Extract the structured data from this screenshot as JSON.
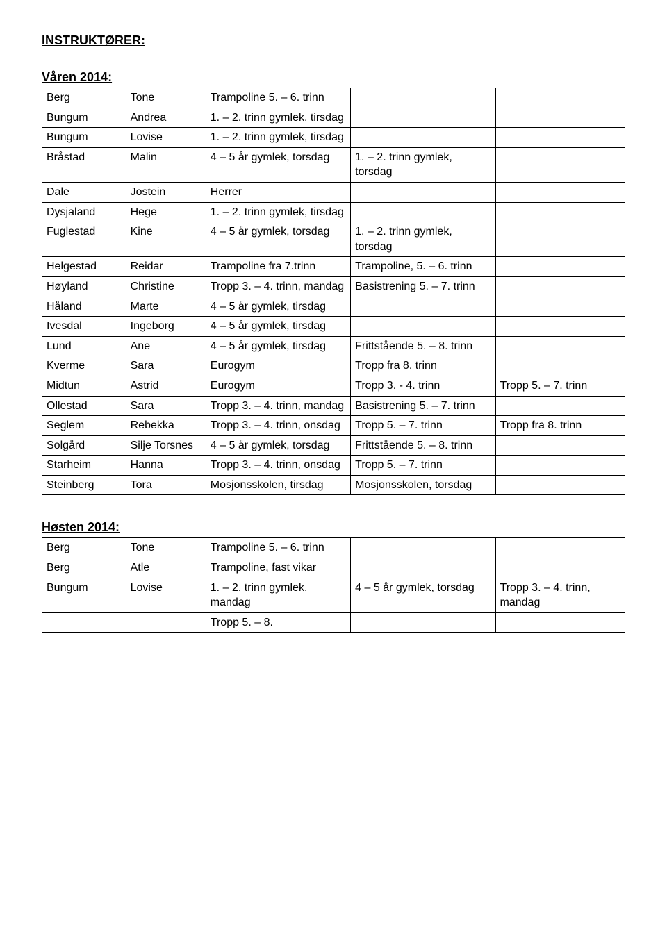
{
  "heading": "INSTRUKTØRER:",
  "spring": {
    "title": "Våren 2014:",
    "rows": [
      [
        "Berg",
        "Tone",
        "Trampoline 5. – 6. trinn",
        "",
        ""
      ],
      [
        "Bungum",
        "Andrea",
        "1. – 2. trinn gymlek, tirsdag",
        "",
        ""
      ],
      [
        "Bungum",
        "Lovise",
        "1. – 2. trinn gymlek, tirsdag",
        "",
        ""
      ],
      [
        "Bråstad",
        "Malin",
        "4 – 5 år gymlek, torsdag",
        "1. – 2. trinn gymlek, torsdag",
        ""
      ],
      [
        "Dale",
        "Jostein",
        "Herrer",
        "",
        ""
      ],
      [
        "Dysjaland",
        "Hege",
        "1. – 2. trinn gymlek, tirsdag",
        "",
        ""
      ],
      [
        "Fuglestad",
        "Kine",
        "4 – 5 år gymlek, torsdag",
        "1. – 2. trinn gymlek, torsdag",
        ""
      ],
      [
        "Helgestad",
        "Reidar",
        "Trampoline fra 7.trinn",
        "Trampoline, 5. – 6. trinn",
        ""
      ],
      [
        "Høyland",
        "Christine",
        "Tropp 3. – 4. trinn, mandag",
        "Basistrening 5. – 7. trinn",
        ""
      ],
      [
        "Håland",
        "Marte",
        "4 – 5 år gymlek, tirsdag",
        "",
        ""
      ],
      [
        "Ivesdal",
        "Ingeborg",
        "4 – 5 år gymlek, tirsdag",
        "",
        ""
      ],
      [
        "Lund",
        "Ane",
        "4 – 5 år gymlek, tirsdag",
        "Frittstående 5. – 8. trinn",
        ""
      ],
      [
        "Kverme",
        "Sara",
        "Eurogym",
        "Tropp fra 8. trinn",
        ""
      ],
      [
        "Midtun",
        "Astrid",
        "Eurogym",
        "Tropp 3. - 4. trinn",
        "Tropp 5. – 7. trinn"
      ],
      [
        "Ollestad",
        "Sara",
        "Tropp 3. – 4. trinn, mandag",
        "Basistrening 5. – 7. trinn",
        ""
      ],
      [
        "Seglem",
        "Rebekka",
        "Tropp 3. – 4. trinn, onsdag",
        "Tropp 5. – 7. trinn",
        "Tropp fra 8. trinn"
      ],
      [
        "Solgård",
        "Silje Torsnes",
        "4 – 5 år gymlek, torsdag",
        "Frittstående 5. – 8. trinn",
        ""
      ],
      [
        "Starheim",
        "Hanna",
        "Tropp 3. – 4. trinn, onsdag",
        "Tropp 5. – 7. trinn",
        ""
      ],
      [
        "Steinberg",
        "Tora",
        "Mosjonsskolen, tirsdag",
        "Mosjonsskolen, torsdag",
        ""
      ]
    ]
  },
  "autumn": {
    "title": "Høsten 2014:",
    "rows": [
      [
        "Berg",
        "Tone",
        "Trampoline 5. – 6. trinn",
        "",
        ""
      ],
      [
        "Berg",
        "Atle",
        "Trampoline, fast vikar",
        "",
        ""
      ],
      [
        "Bungum",
        "Lovise",
        "1. – 2. trinn gymlek, mandag",
        "4 – 5 år gymlek, torsdag",
        "Tropp 3. – 4. trinn, mandag"
      ],
      [
        "",
        "",
        "Tropp 5. – 8.",
        "",
        ""
      ]
    ]
  }
}
